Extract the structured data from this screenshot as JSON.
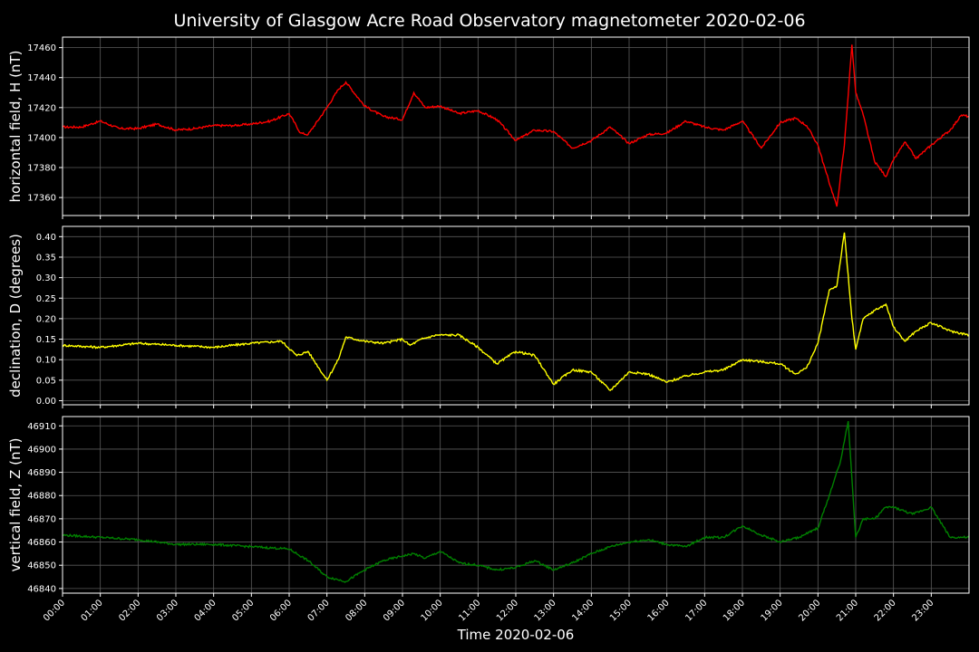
{
  "colors": {
    "background": "#000000",
    "H": "#ff0000",
    "D": "#ffff00",
    "Z": "#008000",
    "grid": "#5a5a5a",
    "text": "#ffffff"
  },
  "chart_data": {
    "type": "line",
    "title": "University of Glasgow Acre Road Observatory magnetometer 2020-02-06",
    "xlabel": "Time 2020-02-06",
    "x_unit": "hours",
    "xlim": [
      0,
      24
    ],
    "x_ticks": [
      "00:00",
      "01:00",
      "02:00",
      "03:00",
      "04:00",
      "05:00",
      "06:00",
      "07:00",
      "08:00",
      "09:00",
      "10:00",
      "11:00",
      "12:00",
      "13:00",
      "14:00",
      "15:00",
      "16:00",
      "17:00",
      "18:00",
      "19:00",
      "20:00",
      "21:00",
      "22:00",
      "23:00"
    ],
    "grid": true,
    "panels": [
      {
        "key": "H",
        "ylabel": "horizontal field, H (nT)",
        "ylim": [
          17348,
          17467
        ],
        "yticks": [
          17360,
          17380,
          17400,
          17420,
          17440,
          17460
        ],
        "ytick_labels": [
          "17360",
          "17380",
          "17400",
          "17420",
          "17440",
          "17460"
        ],
        "color": "#ff0000",
        "x": [
          0,
          0.5,
          1,
          1.5,
          2,
          2.5,
          3,
          3.5,
          4,
          4.5,
          5,
          5.5,
          6,
          6.3,
          6.5,
          7,
          7.3,
          7.5,
          8,
          8.5,
          9,
          9.3,
          9.6,
          10,
          10.5,
          11,
          11.5,
          12,
          12.5,
          13,
          13.5,
          14,
          14.5,
          15,
          15.5,
          16,
          16.5,
          17,
          17.5,
          18,
          18.5,
          19,
          19.4,
          19.7,
          20,
          20.2,
          20.5,
          20.7,
          20.9,
          21,
          21.2,
          21.5,
          21.8,
          22,
          22.3,
          22.6,
          23,
          23.5,
          23.8,
          24
        ],
        "y": [
          17407,
          17407,
          17411,
          17406,
          17406,
          17409,
          17405,
          17406,
          17408,
          17408,
          17409,
          17411,
          17416,
          17403,
          17402,
          17420,
          17432,
          17437,
          17421,
          17414,
          17412,
          17430,
          17420,
          17421,
          17416,
          17418,
          17412,
          17398,
          17405,
          17404,
          17393,
          17398,
          17407,
          17396,
          17402,
          17403,
          17411,
          17407,
          17405,
          17411,
          17393,
          17410,
          17413,
          17408,
          17395,
          17378,
          17354,
          17395,
          17462,
          17430,
          17415,
          17384,
          17374,
          17385,
          17397,
          17386,
          17395,
          17405,
          17415,
          17414
        ]
      },
      {
        "key": "D",
        "ylabel": "declination, D (degrees)",
        "ylim": [
          -0.01,
          0.425
        ],
        "yticks": [
          0,
          0.05,
          0.1,
          0.15,
          0.2,
          0.25,
          0.3,
          0.35,
          0.4
        ],
        "ytick_labels": [
          "0.00",
          "0.05",
          "0.10",
          "0.15",
          "0.20",
          "0.25",
          "0.30",
          "0.35",
          "0.40"
        ],
        "color": "#ffff00",
        "x": [
          0,
          1,
          2,
          3,
          4,
          5,
          5.8,
          6.2,
          6.5,
          7,
          7.3,
          7.5,
          8,
          8.5,
          9,
          9.2,
          9.5,
          9.9,
          10.5,
          11,
          11.5,
          12,
          12.5,
          13,
          13.5,
          14,
          14.5,
          15,
          15.5,
          16,
          16.5,
          17,
          17.5,
          18,
          18.5,
          19,
          19.4,
          19.7,
          20,
          20.3,
          20.5,
          20.7,
          20.9,
          21,
          21.2,
          21.5,
          21.8,
          22,
          22.3,
          22.6,
          23,
          23.5,
          24
        ],
        "y": [
          0.135,
          0.13,
          0.14,
          0.135,
          0.13,
          0.14,
          0.145,
          0.11,
          0.12,
          0.05,
          0.1,
          0.155,
          0.145,
          0.14,
          0.15,
          0.135,
          0.15,
          0.16,
          0.16,
          0.13,
          0.09,
          0.12,
          0.11,
          0.04,
          0.075,
          0.07,
          0.025,
          0.07,
          0.065,
          0.045,
          0.06,
          0.07,
          0.075,
          0.1,
          0.095,
          0.09,
          0.065,
          0.08,
          0.14,
          0.27,
          0.28,
          0.41,
          0.2,
          0.125,
          0.2,
          0.22,
          0.235,
          0.18,
          0.145,
          0.17,
          0.19,
          0.17,
          0.16
        ]
      },
      {
        "key": "Z",
        "ylabel": "vertical field, Z (nT)",
        "ylim": [
          46838,
          46914
        ],
        "yticks": [
          46840,
          46850,
          46860,
          46870,
          46880,
          46890,
          46900,
          46910
        ],
        "ytick_labels": [
          "46840",
          "46850",
          "46860",
          "46870",
          "46880",
          "46890",
          "46900",
          "46910"
        ],
        "color": "#008000",
        "x": [
          0,
          1,
          2,
          3,
          4,
          5,
          6,
          6.5,
          7,
          7.5,
          8,
          8.5,
          9,
          9.3,
          9.6,
          10,
          10.5,
          11,
          11.5,
          12,
          12.5,
          13,
          13.5,
          14,
          14.5,
          15,
          15.5,
          16,
          16.5,
          17,
          17.5,
          18,
          18.5,
          19,
          19.5,
          20,
          20.3,
          20.6,
          20.8,
          21,
          21.2,
          21.5,
          21.8,
          22,
          22.5,
          23,
          23.5,
          24
        ],
        "y": [
          46863,
          46862,
          46861,
          46859,
          46859,
          46858,
          46857,
          46852,
          46845,
          46843,
          46848,
          46852,
          46854,
          46855,
          46853,
          46856,
          46851,
          46850,
          46848,
          46849,
          46852,
          46848,
          46851,
          46855,
          46858,
          46860,
          46861,
          46859,
          46858,
          46862,
          46862,
          46867,
          46863,
          46860,
          46862,
          46866,
          46880,
          46895,
          46912,
          46862,
          46870,
          46870,
          46875,
          46875,
          46872,
          46875,
          46862,
          46862
        ]
      }
    ]
  }
}
